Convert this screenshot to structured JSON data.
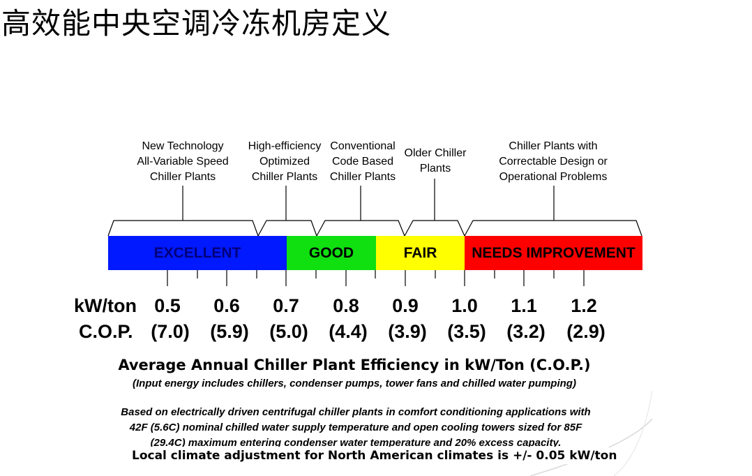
{
  "title": "高效能中央空调冷冻机房定义",
  "categories": [
    {
      "lines": [
        "New Technology",
        "All-Variable Speed",
        "Chiller Plants"
      ]
    },
    {
      "lines": [
        "High-efficiency",
        "Optimized",
        "Chiller Plants"
      ]
    },
    {
      "lines": [
        "Conventional",
        "Code Based",
        "Chiller Plants"
      ]
    },
    {
      "lines": [
        "Older Chiller",
        "Plants"
      ]
    },
    {
      "lines": [
        "Chiller Plants with",
        "Correctable Design or",
        "Operational Problems"
      ]
    }
  ],
  "bands": [
    {
      "label": "EXCELLENT",
      "from": 0.33,
      "to": 0.7,
      "color": "#0019ff",
      "text_color": "#00007a"
    },
    {
      "label": "GOOD",
      "from": 0.7,
      "to": 0.85,
      "color": "#10e010",
      "text_color": "#000000"
    },
    {
      "label": "FAIR",
      "from": 0.85,
      "to": 1.0,
      "color": "#ffff00",
      "text_color": "#000000"
    },
    {
      "label": "NEEDS IMPROVEMENT",
      "from": 1.0,
      "to": 1.3,
      "color": "#ff0000",
      "text_color": "#000000"
    }
  ],
  "scale": {
    "kw_label": "kW/ton",
    "cop_label": "C.O.P.",
    "kw_values": [
      "0.5",
      "0.6",
      "0.7",
      "0.8",
      "0.9",
      "1.0",
      "1.1",
      "1.2"
    ],
    "cop_values": [
      "(7.0)",
      "(5.9)",
      "(5.0)",
      "(4.4)",
      "(3.9)",
      "(3.5)",
      "(3.2)",
      "(2.9)"
    ]
  },
  "heading": "Average Annual Chiller Plant Efficiency in kW/Ton (C.O.P.)",
  "subnote": "(Input energy includes chillers, condenser pumps, tower fans and chilled water pumping)",
  "basis": [
    "Based on electrically driven centrifugal chiller plants in comfort conditioning applications with",
    "42F (5.6C) nominal chilled water supply temperature and open cooling towers sized for 85F",
    "(29.4C) maximum entering condenser water temperature and 20% excess capacity."
  ],
  "climate_note": "Local climate adjustment for North American climates is +/- 0.05 kW/ton"
}
